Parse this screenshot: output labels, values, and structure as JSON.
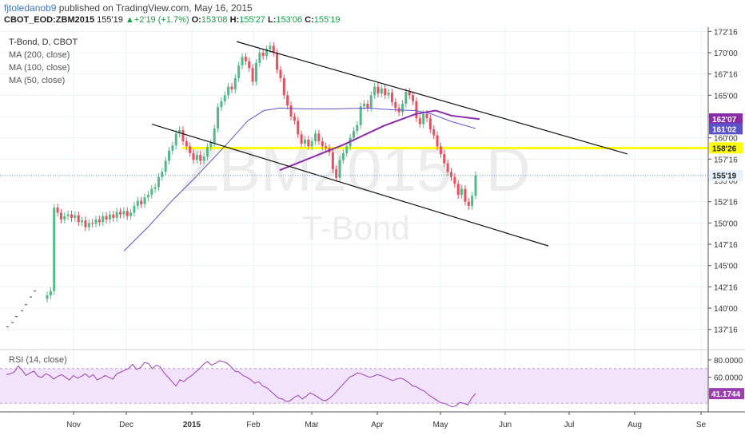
{
  "header": {
    "author": "fjtoledanob9",
    "published_text": "published on TradingView.com, May 16, 2015",
    "symbol": "CBOT_EOD:ZBM2015",
    "last": "155'19",
    "change_arrow": "▲",
    "change": "+2'19 (+1.7%)",
    "open_label": "O:",
    "open": "153'08",
    "high_label": "H:",
    "high": "155'27",
    "low_label": "L:",
    "low": "153'06",
    "close_label": "C:",
    "close": "155'19"
  },
  "legend": [
    "T-Bond, D, CBOT",
    "MA (200, close)",
    "MA (100, close)",
    "MA (50, close)"
  ],
  "watermark": {
    "symbol": "ZBM2015, D",
    "name": "T-Bond"
  },
  "rsi_label": "RSI (14, close)",
  "colors": {
    "up": "#53b987",
    "down": "#eb4d5c",
    "ma_100": "#8a2ca8",
    "ma_50": "#5a52c8",
    "hline": "#ffff00",
    "rsi": "#9b3fb0",
    "rsi_band": "#f1e3fb"
  },
  "chart_data": [
    {
      "type": "candlestick",
      "y_ticks": [
        "172'16",
        "170'00",
        "167'16",
        "165'00",
        "162'16",
        "160'00",
        "157'16",
        "155'00",
        "152'16",
        "150'00",
        "147'16",
        "145'00",
        "142'16",
        "140'00",
        "137'16"
      ],
      "y_range": [
        135.5,
        173
      ],
      "x_ticks": [
        "Nov",
        "Dec",
        "2015",
        "Feb",
        "Mar",
        "Apr",
        "May",
        "Jun",
        "Jul",
        "Aug",
        "Se"
      ],
      "price_labels": [
        {
          "text": "162'07",
          "value": 162.22,
          "color": "#8a2ca8"
        },
        {
          "text": "161'02",
          "value": 161.06,
          "color": "#5a52c8"
        },
        {
          "text": "158'26",
          "value": 158.81,
          "color": "#ffff00"
        },
        {
          "text": "155'19",
          "value": 155.59,
          "color": "#e8f0fb"
        }
      ],
      "horizontal_line": 158.81,
      "close_series": [
        141.5,
        142,
        151.8,
        151.2,
        150.4,
        150.8,
        151.0,
        150.6,
        150.9,
        150.1,
        150.3,
        149.5,
        150.0,
        149.9,
        150.4,
        150.1,
        150.8,
        150.4,
        151.0,
        150.6,
        151.3,
        151.0,
        151.4,
        150.8,
        151.2,
        152.0,
        152.6,
        152.2,
        153.0,
        153.3,
        154.0,
        154.2,
        155.4,
        156.0,
        157.3,
        158.5,
        159.1,
        160.5,
        160.9,
        159.6,
        159.0,
        158.2,
        157.4,
        158.0,
        157.3,
        157.8,
        158.9,
        159.4,
        161.1,
        163.6,
        164.3,
        165.0,
        166.0,
        165.7,
        167.0,
        168.5,
        169.5,
        169.0,
        168.2,
        166.6,
        168.8,
        170.0,
        169.6,
        170.4,
        170.8,
        170.0,
        168.0,
        167.0,
        165.0,
        163.8,
        162.5,
        162.0,
        160.4,
        159.3,
        159.8,
        159.0,
        159.6,
        160.5,
        159.6,
        159.0,
        158.8,
        158.3,
        156.3,
        155.3,
        157.4,
        158.2,
        159.0,
        160.0,
        160.8,
        161.5,
        163.7,
        164.0,
        163.5,
        165.0,
        166.0,
        165.2,
        165.8,
        165.0,
        165.3,
        164.2,
        163.5,
        163.0,
        164.0,
        165.4,
        165.0,
        164.3,
        162.3,
        161.6,
        162.8,
        162.3,
        161.0,
        160.3,
        159.0,
        158.1,
        157.0,
        156.0,
        155.4,
        154.6,
        153.3,
        154.0,
        152.5,
        152.0,
        153.2,
        155.6
      ],
      "moving_averages": [
        {
          "period": 100,
          "values": [
            [
              350,
              156.2
            ],
            [
              430,
              159.2
            ],
            [
              480,
              161.4
            ],
            [
              520,
              162.8
            ],
            [
              545,
              163.2
            ],
            [
              565,
              162.6
            ],
            [
              600,
              162.2
            ]
          ]
        },
        {
          "period": 50,
          "values": [
            [
              155,
              146.7
            ],
            [
              185,
              149.5
            ],
            [
              215,
              152.6
            ],
            [
              245,
              155.4
            ],
            [
              265,
              157.4
            ],
            [
              285,
              159.4
            ],
            [
              310,
              162.0
            ],
            [
              330,
              163.2
            ],
            [
              350,
              163.5
            ],
            [
              380,
              163.4
            ],
            [
              420,
              163.4
            ],
            [
              460,
              163.5
            ],
            [
              490,
              163.3
            ],
            [
              520,
              163.2
            ],
            [
              540,
              162.8
            ],
            [
              565,
              161.9
            ],
            [
              595,
              161.1
            ]
          ]
        }
      ],
      "trend_lines": [
        {
          "from": [
            296,
            171.3
          ],
          "to": [
            785,
            158.1
          ]
        },
        {
          "from": [
            190,
            161.6
          ],
          "to": [
            686,
            147.3
          ]
        }
      ]
    },
    {
      "type": "line",
      "name": "RSI (14, close)",
      "y_ticks": [
        "80.0000",
        "60.0000",
        "40.0000"
      ],
      "y_range": [
        22,
        90
      ],
      "band": [
        30,
        70
      ],
      "last_label": "41.1744",
      "last_value": 41.1744,
      "values": [
        63,
        64,
        66,
        73,
        68,
        62,
        65,
        67,
        61,
        60,
        64,
        62,
        58,
        61,
        63,
        60,
        57,
        62,
        59,
        61,
        64,
        60,
        63,
        57,
        59,
        62,
        60,
        58,
        64,
        66,
        68,
        70,
        75,
        69,
        71,
        77,
        76,
        70,
        74,
        72,
        65,
        60,
        55,
        50,
        57,
        55,
        59,
        62,
        66,
        70,
        75,
        78,
        74,
        76,
        79,
        78,
        76,
        72,
        67,
        66,
        62,
        60,
        57,
        53,
        55,
        50,
        48,
        44,
        40,
        36,
        35,
        32,
        33,
        37,
        39,
        35,
        38,
        42,
        40,
        37,
        34,
        33,
        36,
        40,
        45,
        50,
        55,
        60,
        62,
        65,
        64,
        62,
        60,
        61,
        63,
        62,
        60,
        58,
        56,
        58,
        59,
        57,
        54,
        50,
        49,
        46,
        44,
        40,
        37,
        34,
        31,
        30,
        28,
        26,
        27,
        31,
        30,
        28,
        36,
        41.17
      ]
    }
  ]
}
